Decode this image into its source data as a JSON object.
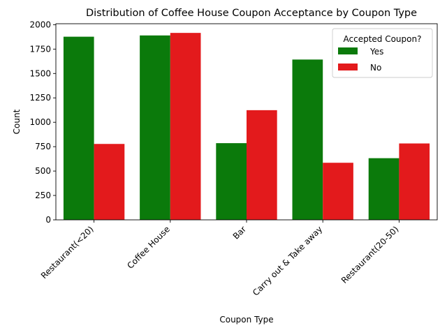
{
  "chart_data": {
    "type": "bar",
    "title": "Distribution of Coffee House Coupon Acceptance by Coupon Type",
    "xlabel": "Coupon Type",
    "ylabel": "Count",
    "categories": [
      "Restaurant(<20)",
      "Coffee House",
      "Bar",
      "Carry out & Take away",
      "Restaurant(20-50)"
    ],
    "series": [
      {
        "name": "Yes",
        "color": "#0b7a0b",
        "values": [
          1877,
          1890,
          786,
          1643,
          632
        ]
      },
      {
        "name": "No",
        "color": "#e31a1c",
        "values": [
          778,
          1916,
          1124,
          585,
          783
        ]
      }
    ],
    "ylim": [
      0,
      2010
    ],
    "yticks": [
      0,
      250,
      500,
      750,
      1000,
      1250,
      1500,
      1750,
      2000
    ],
    "ytick_labels": [
      "0",
      "250",
      "500",
      "750",
      "1000",
      "1250",
      "1500",
      "1750",
      "2000"
    ],
    "grid": false,
    "legend": {
      "title": "Accepted Coupon?",
      "placement": "top-right"
    }
  }
}
